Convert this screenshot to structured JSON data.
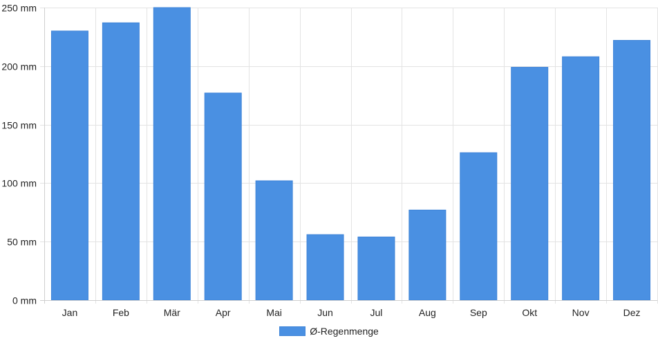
{
  "chart_data": {
    "type": "bar",
    "title": "",
    "xlabel": "",
    "ylabel": "",
    "categories": [
      "Jan",
      "Feb",
      "Mär",
      "Apr",
      "Mai",
      "Jun",
      "Jul",
      "Aug",
      "Sep",
      "Okt",
      "Nov",
      "Dez"
    ],
    "series": [
      {
        "name": "Ø-Regenmenge",
        "color": "#4a90e2",
        "values": [
          230,
          237,
          250,
          177,
          102,
          56,
          54,
          77,
          126,
          199,
          208,
          222
        ]
      }
    ],
    "ylim": [
      0,
      250
    ],
    "y_ticks": [
      0,
      50,
      100,
      150,
      200,
      250
    ],
    "y_tick_labels": [
      "0 mm",
      "50 mm",
      "100 mm",
      "150 mm",
      "200 mm",
      "250 mm"
    ],
    "grid": true,
    "legend_position": "bottom"
  }
}
